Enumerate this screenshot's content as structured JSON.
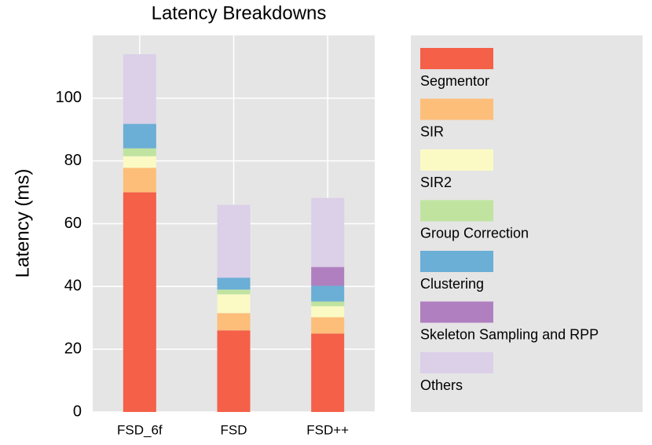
{
  "chart_data": {
    "type": "stacked_bar",
    "title": "Latency Breakdowns",
    "y_label": "Latency (ms)",
    "categories": [
      "FSD_6f",
      "FSD",
      "FSD++"
    ],
    "series": [
      {
        "name": "Segmentor",
        "color": "#f46048",
        "values": [
          70,
          26,
          25
        ]
      },
      {
        "name": "SIR",
        "color": "#fdbe7a",
        "values": [
          7.8,
          5.5,
          5.2
        ]
      },
      {
        "name": "SIR2",
        "color": "#fbfac5",
        "values": [
          3.7,
          6,
          3.5
        ]
      },
      {
        "name": "Group Correction",
        "color": "#c0e4a0",
        "values": [
          2.5,
          1.5,
          1.5
        ]
      },
      {
        "name": "Clustering",
        "color": "#6baed6",
        "values": [
          7.8,
          3.8,
          5
        ]
      },
      {
        "name": "Skeleton Sampling and RPP",
        "color": "#b07fc0",
        "values": [
          0,
          0,
          6
        ]
      },
      {
        "name": "Others",
        "color": "#dbd0e8",
        "values": [
          22.2,
          23.2,
          22
        ]
      }
    ],
    "ylim": [
      0,
      120
    ],
    "yticks": [
      0,
      20,
      40,
      60,
      80,
      100
    ],
    "grid": true,
    "legend_position": "right"
  }
}
